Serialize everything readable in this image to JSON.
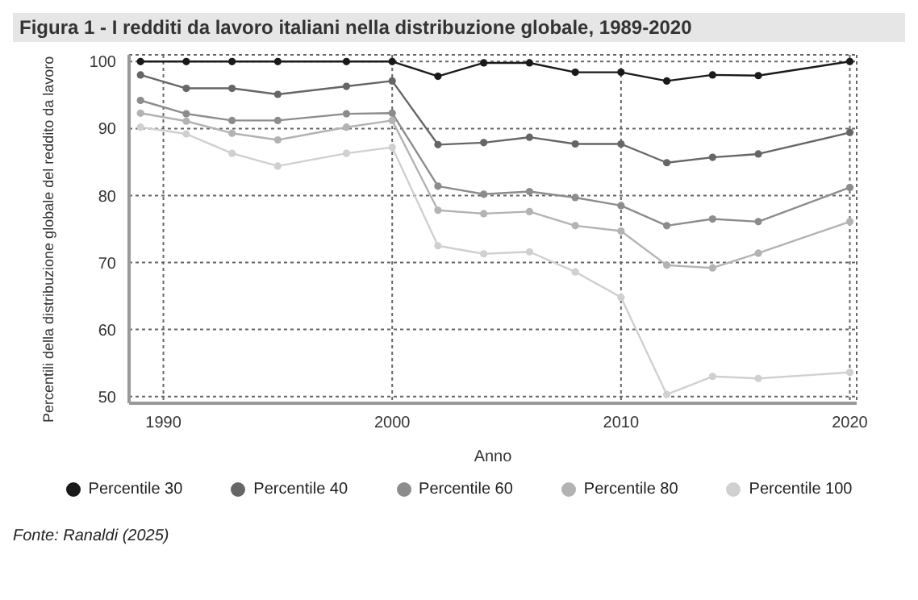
{
  "chart_data": {
    "type": "line",
    "title": "Figura 1 - I redditi da lavoro italiani nella distribuzione globale, 1989-2020",
    "xlabel": "Anno",
    "ylabel": "Percentili della distribuzione globale del reddito da lavoro",
    "x": [
      1989,
      1991,
      1993,
      1995,
      1998,
      2000,
      2002,
      2004,
      2006,
      2008,
      2010,
      2012,
      2014,
      2016,
      2020
    ],
    "series": [
      {
        "name": "Percentile 30",
        "color": "#1a1a1a",
        "values": [
          100,
          100,
          100,
          100,
          100,
          100,
          97.8,
          99.8,
          99.8,
          98.4,
          98.4,
          97.1,
          98,
          97.9,
          100
        ]
      },
      {
        "name": "Percentile 40",
        "color": "#666666",
        "values": [
          98,
          96,
          96,
          95.1,
          96.3,
          97.1,
          87.6,
          87.9,
          88.7,
          87.7,
          87.7,
          84.9,
          85.7,
          86.2,
          89.4
        ]
      },
      {
        "name": "Percentile 60",
        "color": "#8c8c8c",
        "values": [
          94.2,
          92.2,
          91.2,
          91.2,
          92.2,
          92.3,
          81.4,
          80.2,
          80.6,
          79.7,
          78.5,
          75.5,
          76.5,
          76.1,
          81.2
        ]
      },
      {
        "name": "Percentile 80",
        "color": "#b3b3b3",
        "values": [
          92.3,
          91.1,
          89.3,
          88.3,
          90.2,
          91.2,
          77.8,
          77.3,
          77.6,
          75.5,
          74.7,
          69.6,
          69.2,
          71.4,
          76.1
        ]
      },
      {
        "name": "Percentile 100",
        "color": "#d0d0d0",
        "values": [
          90.2,
          89.2,
          86.3,
          84.4,
          86.3,
          87.2,
          72.5,
          71.3,
          71.6,
          68.6,
          64.8,
          50.3,
          53,
          52.7,
          53.6
        ]
      }
    ],
    "xlim": [
      1988.5,
      2020.3
    ],
    "xticks": [
      1990,
      2000,
      2010,
      2020
    ],
    "ylim": [
      49,
      101
    ],
    "yticks": [
      50,
      60,
      70,
      80,
      90,
      100
    ],
    "grid": true,
    "legend": "bottom",
    "marker": "circle",
    "line_style": "solid",
    "annotations": [
      "Fonte: Ranaldi (2025)"
    ]
  }
}
